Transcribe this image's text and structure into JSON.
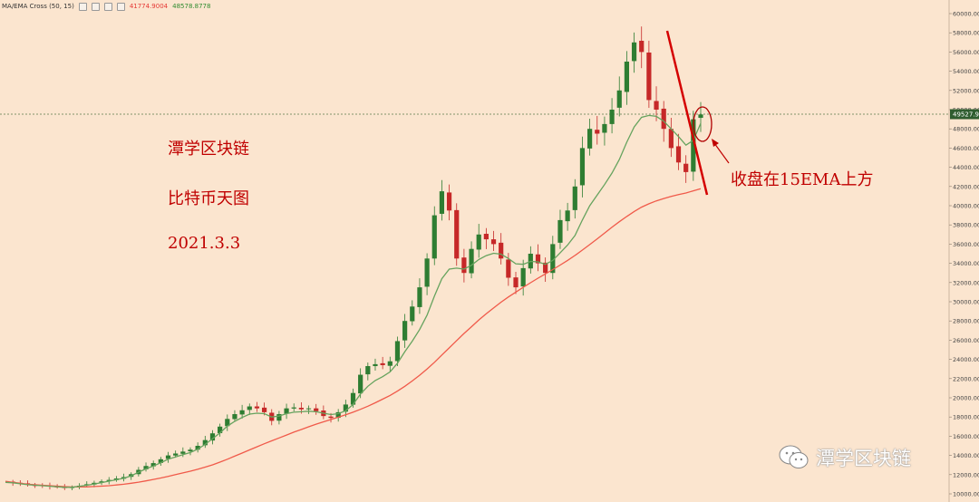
{
  "indicator": {
    "name": "MA/EMA Cross (50, 15)",
    "ma_value": "41774.9004",
    "ema_value": "48578.8778"
  },
  "annotations": {
    "title": "潭学区块链",
    "subtitle": "比特币天图",
    "date": "2021.3.3",
    "callout": "收盘在15EMA上方"
  },
  "watermark": {
    "text": "潭学区块链"
  },
  "price_tag": "49527.98",
  "colors": {
    "background": "#fbe5cf",
    "up_candle": "#2e7d32",
    "down_candle": "#c62828",
    "ema_line": "#66a35e",
    "ma_line": "#f05a4a",
    "trendline": "#d40000",
    "annotation": "#c00000"
  },
  "chart_data": {
    "type": "candlestick",
    "title": "",
    "y_axis": {
      "min": 10000,
      "max": 60000,
      "position": "right",
      "ticks": [
        "60000.00",
        "58000.00",
        "56000.00",
        "54000.00",
        "52000.00",
        "50000.00",
        "48000.00",
        "46000.00",
        "44000.00",
        "42000.00",
        "40000.00",
        "38000.00",
        "36000.00",
        "34000.00",
        "32000.00",
        "30000.00",
        "28000.00",
        "26000.00",
        "24000.00",
        "22000.00",
        "20000.00",
        "18000.00",
        "16000.00",
        "14000.00",
        "12000.00",
        "10000.00"
      ]
    },
    "current_price": 49527.98,
    "close_prices": [
      11250,
      11150,
      11050,
      10950,
      10900,
      10850,
      10780,
      10720,
      10650,
      10700,
      10850,
      11000,
      11150,
      11300,
      11450,
      11600,
      11750,
      12050,
      12500,
      12900,
      13200,
      13600,
      14000,
      14200,
      14400,
      14600,
      15000,
      15600,
      16300,
      17000,
      17800,
      18300,
      18700,
      19100,
      18900,
      18500,
      17600,
      18300,
      18900,
      19000,
      18800,
      18900,
      18600,
      18100,
      17900,
      18500,
      19300,
      20500,
      22400,
      23300,
      23500,
      23400,
      23800,
      25900,
      28000,
      29500,
      31500,
      34500,
      39000,
      41500,
      39500,
      34500,
      33000,
      35500,
      37000,
      36500,
      36000,
      34500,
      32500,
      31500,
      33500,
      35000,
      34000,
      33000,
      36000,
      38500,
      39500,
      42000,
      46000,
      48000,
      47500,
      48500,
      50000,
      52000,
      55000,
      57000,
      56000,
      51000,
      50000,
      48000,
      46000,
      44500,
      43500,
      49000,
      49500
    ],
    "series": [
      {
        "name": "MA",
        "values": [
          11300,
          11200,
          11100,
          11000,
          10950,
          10900,
          10850,
          10800,
          10750,
          10720,
          10720,
          10730,
          10760,
          10800,
          10850,
          10920,
          11000,
          11100,
          11220,
          11350,
          11500,
          11650,
          11820,
          12000,
          12180,
          12360,
          12560,
          12780,
          13020,
          13300,
          13600,
          13920,
          14250,
          14580,
          14900,
          15220,
          15520,
          15820,
          16120,
          16420,
          16700,
          16980,
          17250,
          17500,
          17740,
          17980,
          18230,
          18500,
          18800,
          19120,
          19480,
          19860,
          20250,
          20700,
          21200,
          21750,
          22350,
          23000,
          23700,
          24450,
          25200,
          25950,
          26700,
          27400,
          28100,
          28750,
          29350,
          29950,
          30500,
          31000,
          31500,
          31980,
          32450,
          32900,
          33350,
          33820,
          34300,
          34820,
          35380,
          35950,
          36550,
          37150,
          37750,
          38330,
          38880,
          39400,
          39850,
          40200,
          40500,
          40750,
          40960,
          41150,
          41320,
          41550,
          41774.9
        ]
      },
      {
        "name": "EMA",
        "values": [
          11200,
          11150,
          11050,
          10950,
          10900,
          10850,
          10790,
          10740,
          10680,
          10690,
          10780,
          10900,
          11030,
          11170,
          11320,
          11470,
          11620,
          11880,
          12250,
          12600,
          12900,
          13250,
          13600,
          13850,
          14080,
          14300,
          14650,
          15150,
          15750,
          16350,
          17050,
          17550,
          17950,
          18300,
          18400,
          18350,
          18000,
          18100,
          18350,
          18500,
          18550,
          18600,
          18550,
          18400,
          18250,
          18350,
          18650,
          19300,
          20400,
          21200,
          21800,
          22200,
          22700,
          23600,
          24800,
          25900,
          27100,
          28600,
          30600,
          32400,
          33400,
          33500,
          33400,
          33800,
          34400,
          34800,
          35050,
          34950,
          34500,
          33950,
          33900,
          34200,
          34150,
          33900,
          34300,
          35100,
          35900,
          36900,
          38500,
          40000,
          41100,
          42200,
          43400,
          44800,
          46600,
          48200,
          49200,
          49400,
          49300,
          48800,
          48000,
          47200,
          46300,
          46800,
          48578.88
        ]
      }
    ]
  }
}
